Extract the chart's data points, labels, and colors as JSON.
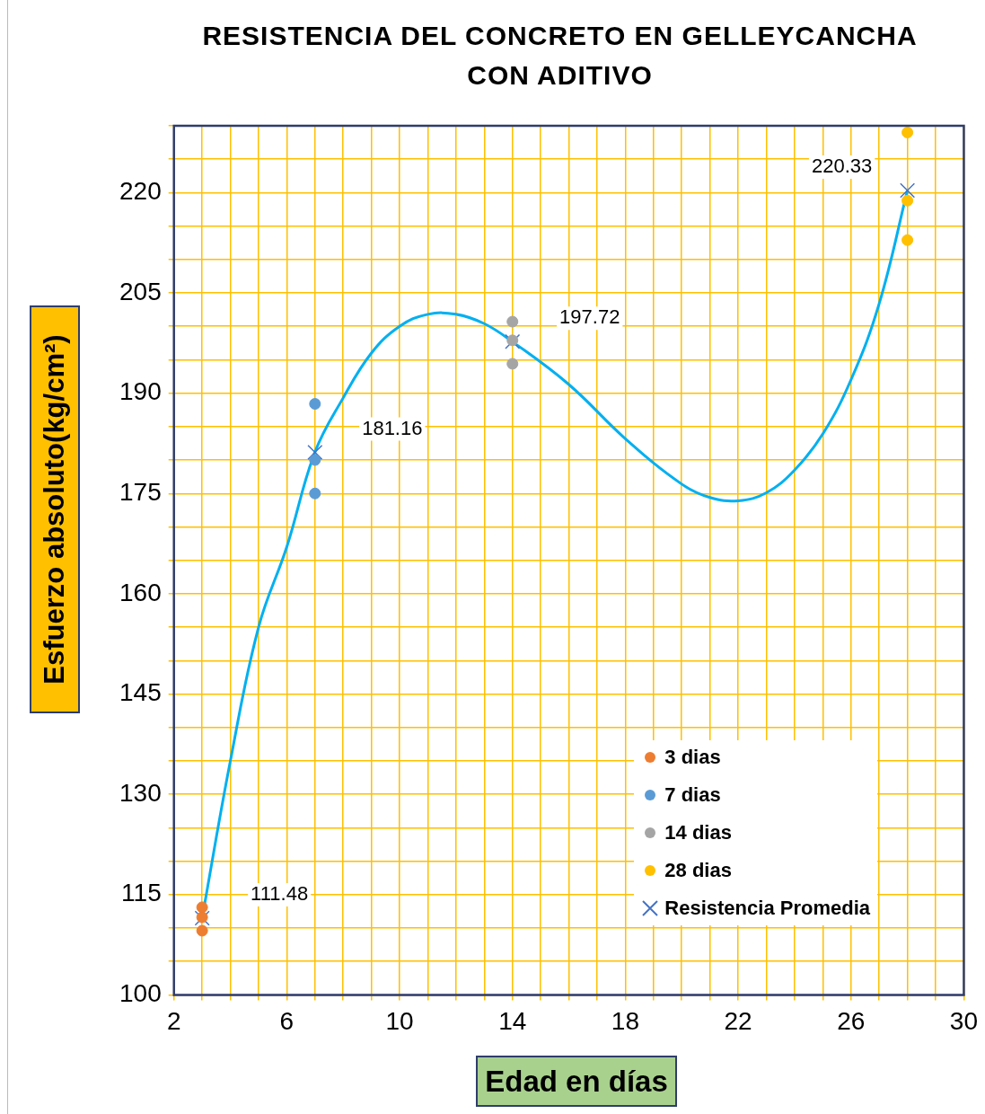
{
  "chart_data": {
    "type": "scatter",
    "title": "RESISTENCIA DEL CONCRETO EN GELLEYCANCHA\nCON ADITIVO",
    "xlabel": "Edad en días",
    "ylabel": "Esfuerzo absoluto(kg/cm²)",
    "xlim": [
      2,
      30
    ],
    "ylim": [
      100,
      230
    ],
    "xticks": [
      2,
      {
        "value": 3,
        "label": null
      },
      {
        "value": 4,
        "label": null
      },
      {
        "value": 5,
        "label": null
      },
      6,
      {
        "value": 7,
        "label": null
      },
      {
        "value": 8,
        "label": null
      },
      {
        "value": 9,
        "label": null
      },
      10,
      {
        "value": 11,
        "label": null
      },
      {
        "value": 12,
        "label": null
      },
      {
        "value": 13,
        "label": null
      },
      14,
      {
        "value": 15,
        "label": null
      },
      {
        "value": 16,
        "label": null
      },
      {
        "value": 17,
        "label": null
      },
      18,
      {
        "value": 19,
        "label": null
      },
      {
        "value": 20,
        "label": null
      },
      {
        "value": 21,
        "label": null
      },
      22,
      {
        "value": 23,
        "label": null
      },
      {
        "value": 24,
        "label": null
      },
      {
        "value": 25,
        "label": null
      },
      26,
      {
        "value": 27,
        "label": null
      },
      {
        "value": 28,
        "label": null
      },
      {
        "value": 29,
        "label": null
      },
      30
    ],
    "yticks": [
      100,
      {
        "value": 105,
        "label": null
      },
      {
        "value": 110,
        "label": null
      },
      115,
      {
        "value": 120,
        "label": null
      },
      {
        "value": 125,
        "label": null
      },
      130,
      {
        "value": 135,
        "label": null
      },
      {
        "value": 140,
        "label": null
      },
      145,
      {
        "value": 150,
        "label": null
      },
      {
        "value": 155,
        "label": null
      },
      160,
      {
        "value": 165,
        "label": null
      },
      {
        "value": 170,
        "label": null
      },
      175,
      {
        "value": 180,
        "label": null
      },
      {
        "value": 185,
        "label": null
      },
      190,
      {
        "value": 195,
        "label": null
      },
      {
        "value": 200,
        "label": null
      },
      205,
      {
        "value": 210,
        "label": null
      },
      {
        "value": 215,
        "label": null
      },
      220,
      {
        "value": 225,
        "label": null
      },
      {
        "value": 230,
        "label": null
      }
    ],
    "grid": true,
    "legend": "bottom right",
    "series": [
      {
        "name": "3 dias",
        "type": "scatter",
        "marker": "circle",
        "color": "#ed7d31",
        "x": [
          3,
          3,
          3
        ],
        "values": [
          113.1,
          111.6,
          109.6
        ]
      },
      {
        "name": "7 dias",
        "type": "scatter",
        "marker": "circle",
        "color": "#5b9bd5",
        "x": [
          7,
          7,
          7
        ],
        "values": [
          188.4,
          180.0,
          175.0
        ]
      },
      {
        "name": "14 dias",
        "type": "scatter",
        "marker": "circle",
        "color": "#a5a5a5",
        "x": [
          14,
          14,
          14
        ],
        "values": [
          200.7,
          197.9,
          194.4
        ]
      },
      {
        "name": "28 dias",
        "type": "scatter",
        "marker": "circle",
        "color": "#ffc000",
        "x": [
          28,
          28,
          28
        ],
        "values": [
          229.0,
          218.8,
          212.9
        ]
      },
      {
        "name": "Resistencia Promedia",
        "type": "scatter",
        "marker": "cross",
        "color": "#4472c4",
        "x": [
          3,
          7,
          14,
          28
        ],
        "values": [
          111.48,
          181.16,
          197.72,
          220.33
        ]
      },
      {
        "type": "line",
        "marker": "none",
        "line_style": "solid",
        "color": "#00b0f0",
        "x": [
          3,
          4,
          5,
          6,
          7,
          8,
          9,
          10,
          11,
          12,
          13,
          14,
          16,
          18,
          20,
          21,
          22,
          23,
          24,
          25,
          26,
          27,
          28
        ],
        "values": [
          111.5,
          135,
          155,
          167,
          181.2,
          189.3,
          196,
          200,
          201.8,
          201.8,
          200.4,
          197.7,
          191.3,
          183.2,
          176.4,
          174.4,
          173.9,
          175.1,
          178.5,
          183.9,
          192,
          203.4,
          220.3
        ]
      }
    ],
    "annotations": [
      {
        "text": "111.48",
        "x": 3,
        "y": 111.48
      },
      {
        "text": "181.16",
        "x": 7,
        "y": 181.16
      },
      {
        "text": "197.72",
        "x": 14,
        "y": 197.72
      },
      {
        "text": "220.33",
        "x": 28,
        "y": 220.33
      }
    ]
  }
}
